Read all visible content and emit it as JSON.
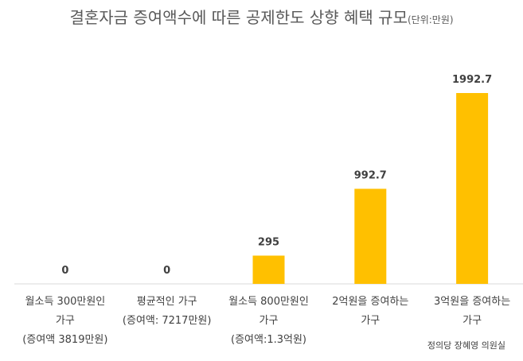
{
  "chart_data": {
    "type": "bar",
    "title": "결혼자금 증여액수에 따른 공제한도 상향 혜택 규모",
    "unit": "(단위:만원)",
    "categories": [
      {
        "line1": "월소득 300만원인",
        "line2": "가구",
        "line3": "(증여액 3819만원)"
      },
      {
        "line1": "평균적인 가구",
        "line2": "(증여액: 7217만원)",
        "line3": ""
      },
      {
        "line1": "월소득 800만원인",
        "line2": "가구",
        "line3": "(증여액:1.3억원)"
      },
      {
        "line1": "2억원을 증여하는",
        "line2": "가구",
        "line3": ""
      },
      {
        "line1": "3억원을 증여하는",
        "line2": "가구",
        "line3": ""
      }
    ],
    "values": [
      0,
      0,
      295,
      992.7,
      1992.7
    ],
    "value_labels": [
      "0",
      "0",
      "295",
      "992.7",
      "1992.7"
    ],
    "ylim": [
      0,
      2100
    ],
    "bar_color": "#FFC000",
    "axis_color": "#D9D9D9",
    "source": "정의당 장혜영 의원실"
  }
}
